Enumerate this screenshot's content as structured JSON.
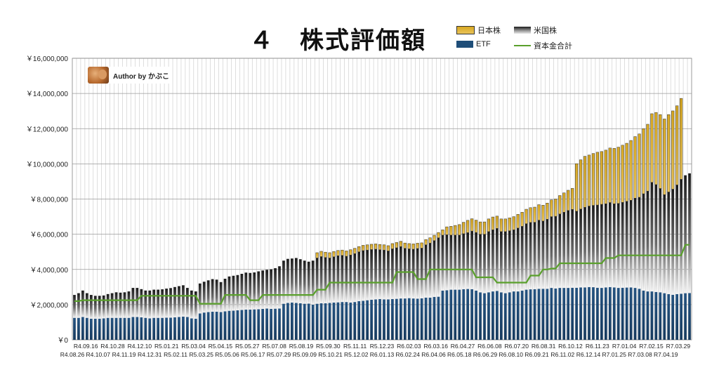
{
  "chart_data": {
    "type": "bar",
    "title": "４　株式評価額",
    "ylim": [
      0,
      16000000
    ],
    "yticks": [
      0,
      2000000,
      4000000,
      6000000,
      8000000,
      10000000,
      12000000,
      14000000,
      16000000
    ],
    "ytick_labels": [
      "￥0",
      "￥2,000,000",
      "￥4,000,000",
      "￥6,000,000",
      "￥8,000,000",
      "￥10,000,000",
      "￥12,000,000",
      "￥14,000,000",
      "￥16,000,000"
    ],
    "grid": true,
    "legend_placement": "top-right",
    "stacked": true,
    "x_label_row1": [
      "R4.09.16",
      "R4.10.28",
      "R4.12.10",
      "R5.01.21",
      "R5.03.04",
      "R5.04.15",
      "R5.05.27",
      "R5.07.08",
      "R5.08.19",
      "R5.09.30",
      "R5.11.11",
      "R5.12.23",
      "R6.02.03",
      "R6.03.16",
      "R6.04.27",
      "R6.06.08",
      "R6.07.20",
      "R6.08.31",
      "R6.10.12",
      "R6.11.23",
      "R7.01.04",
      "R7.02.15",
      "R7.03.29"
    ],
    "x_label_row2": [
      "R4.08.26",
      "R4.10.07",
      "R4.11.19",
      "R4.12.31",
      "R5.02.11",
      "R5.03.25",
      "R5.05.06",
      "R5.06.17",
      "R5.07.29",
      "R5.09.09",
      "R5.10.21",
      "R5.12.02",
      "R6.01.13",
      "R6.02.24",
      "R6.04.06",
      "R6.05.18",
      "R6.06.29",
      "R6.08.10",
      "R6.09.21",
      "R6.11.02",
      "R6.12.14",
      "R7.01.25",
      "R7.03.08",
      "R7.04.19"
    ],
    "series": [
      {
        "name": "ETF",
        "color": "#1f4e79",
        "values": [
          1250000,
          1250000,
          1300000,
          1250000,
          1200000,
          1200000,
          1200000,
          1220000,
          1250000,
          1250000,
          1250000,
          1250000,
          1250000,
          1250000,
          1300000,
          1300000,
          1280000,
          1250000,
          1220000,
          1250000,
          1250000,
          1250000,
          1260000,
          1260000,
          1280000,
          1300000,
          1320000,
          1300000,
          1220000,
          1200000,
          1500000,
          1550000,
          1580000,
          1600000,
          1600000,
          1580000,
          1620000,
          1650000,
          1660000,
          1680000,
          1700000,
          1720000,
          1720000,
          1730000,
          1740000,
          1760000,
          1780000,
          1760000,
          1770000,
          1780000,
          2050000,
          2100000,
          2120000,
          2100000,
          2080000,
          2050000,
          2060000,
          2000000,
          2050000,
          2080000,
          2080000,
          2100000,
          2120000,
          2130000,
          2150000,
          2150000,
          2120000,
          2150000,
          2200000,
          2220000,
          2250000,
          2280000,
          2300000,
          2320000,
          2300000,
          2300000,
          2320000,
          2330000,
          2350000,
          2350000,
          2370000,
          2350000,
          2340000,
          2360000,
          2400000,
          2400000,
          2440000,
          2450000,
          2800000,
          2820000,
          2850000,
          2850000,
          2850000,
          2880000,
          2890000,
          2880000,
          2800000,
          2700000,
          2650000,
          2700000,
          2750000,
          2780000,
          2700000,
          2650000,
          2700000,
          2750000,
          2750000,
          2800000,
          2850000,
          2870000,
          2880000,
          2900000,
          2900000,
          2900000,
          2950000,
          2920000,
          2950000,
          2950000,
          2950000,
          2960000,
          2960000,
          2980000,
          2980000,
          3000000,
          2990000,
          2960000,
          2950000,
          2980000,
          3000000,
          2980000,
          2950000,
          2960000,
          2970000,
          2980000,
          2950000,
          2900000,
          2800000,
          2750000,
          2750000,
          2720000,
          2700000,
          2650000,
          2600000,
          2560000,
          2600000,
          2620000,
          2650000,
          2660000
        ]
      },
      {
        "name": "米国株",
        "color": "#2a2a2a",
        "values": [
          1300000,
          1400000,
          1500000,
          1400000,
          1350000,
          1300000,
          1300000,
          1300000,
          1350000,
          1400000,
          1450000,
          1430000,
          1450000,
          1500000,
          1650000,
          1650000,
          1600000,
          1550000,
          1580000,
          1600000,
          1600000,
          1620000,
          1650000,
          1680000,
          1720000,
          1750000,
          1780000,
          1650000,
          1580000,
          1550000,
          1700000,
          1750000,
          1800000,
          1850000,
          1820000,
          1700000,
          1850000,
          1950000,
          1980000,
          2000000,
          2050000,
          2100000,
          2080000,
          2100000,
          2150000,
          2180000,
          2200000,
          2250000,
          2300000,
          2400000,
          2450000,
          2500000,
          2500000,
          2550000,
          2500000,
          2450000,
          2380000,
          2500000,
          2600000,
          2650000,
          2600000,
          2550000,
          2600000,
          2650000,
          2650000,
          2600000,
          2700000,
          2750000,
          2800000,
          2850000,
          2850000,
          2850000,
          2850000,
          2800000,
          2800000,
          2750000,
          2850000,
          2900000,
          2950000,
          2850000,
          2800000,
          2800000,
          2850000,
          2850000,
          3000000,
          3100000,
          3200000,
          3350000,
          3150000,
          3150000,
          3100000,
          3100000,
          3100000,
          3150000,
          3200000,
          3300000,
          3300000,
          3300000,
          3350000,
          3450000,
          3500000,
          3550000,
          3450000,
          3500000,
          3500000,
          3500000,
          3600000,
          3650000,
          3750000,
          3800000,
          3800000,
          3900000,
          3850000,
          3950000,
          4050000,
          4100000,
          4200000,
          4300000,
          4400000,
          4450000,
          4350000,
          4450000,
          4550000,
          4600000,
          4650000,
          4700000,
          4750000,
          4750000,
          4800000,
          4750000,
          4800000,
          4850000,
          4900000,
          4950000,
          5100000,
          5200000,
          5500000,
          5700000,
          6200000,
          6100000,
          5900000,
          5600000,
          5800000,
          6000000,
          6200000,
          6500000,
          6700000,
          6800000
        ]
      },
      {
        "name": "日本株",
        "color": "#e3b52c",
        "values": [
          0,
          0,
          0,
          0,
          0,
          0,
          0,
          0,
          0,
          0,
          0,
          0,
          0,
          0,
          0,
          0,
          0,
          0,
          0,
          0,
          0,
          0,
          0,
          0,
          0,
          0,
          0,
          0,
          0,
          0,
          0,
          0,
          0,
          0,
          0,
          0,
          0,
          0,
          0,
          0,
          0,
          0,
          0,
          0,
          0,
          0,
          0,
          0,
          0,
          0,
          0,
          0,
          0,
          0,
          0,
          0,
          0,
          0,
          300000,
          300000,
          300000,
          300000,
          300000,
          300000,
          300000,
          300000,
          300000,
          300000,
          300000,
          300000,
          300000,
          300000,
          300000,
          300000,
          300000,
          300000,
          300000,
          300000,
          300000,
          300000,
          300000,
          300000,
          300000,
          300000,
          300000,
          300000,
          300000,
          300000,
          300000,
          450000,
          500000,
          550000,
          600000,
          650000,
          700000,
          700000,
          700000,
          700000,
          700000,
          720000,
          730000,
          700000,
          720000,
          720000,
          730000,
          750000,
          780000,
          800000,
          820000,
          840000,
          860000,
          880000,
          900000,
          920000,
          950000,
          980000,
          1050000,
          1100000,
          1150000,
          1200000,
          2700000,
          2800000,
          2900000,
          2900000,
          2950000,
          3000000,
          3000000,
          3050000,
          3100000,
          3150000,
          3200000,
          3250000,
          3300000,
          3400000,
          3500000,
          3600000,
          3700000,
          3800000,
          3900000,
          4100000,
          4200000,
          4300000,
          4400000,
          4450000,
          4500000,
          4600000
        ]
      },
      {
        "name": "資本金合計",
        "color": "#5aa02c",
        "type": "line",
        "values": [
          2200000,
          2200000,
          2250000,
          2250000,
          2250000,
          2250000,
          2250000,
          2250000,
          2250000,
          2250000,
          2250000,
          2250000,
          2250000,
          2250000,
          2250000,
          2250000,
          2500000,
          2500000,
          2500000,
          2500000,
          2500000,
          2500000,
          2500000,
          2500000,
          2500000,
          2500000,
          2500000,
          2500000,
          2500000,
          2500000,
          2050000,
          2050000,
          2050000,
          2050000,
          2050000,
          2050000,
          2550000,
          2550000,
          2550000,
          2550000,
          2550000,
          2550000,
          2250000,
          2250000,
          2250000,
          2550000,
          2550000,
          2550000,
          2550000,
          2550000,
          2550000,
          2550000,
          2550000,
          2550000,
          2550000,
          2550000,
          2550000,
          2550000,
          2850000,
          2850000,
          2850000,
          3250000,
          3250000,
          3250000,
          3250000,
          3250000,
          3250000,
          3250000,
          3250000,
          3250000,
          3250000,
          3250000,
          3250000,
          3250000,
          3250000,
          3250000,
          3250000,
          3850000,
          3850000,
          3850000,
          3850000,
          3850000,
          3450000,
          3450000,
          3450000,
          4000000,
          4000000,
          4000000,
          4000000,
          4000000,
          4000000,
          4000000,
          4000000,
          4000000,
          4000000,
          4000000,
          3550000,
          3550000,
          3550000,
          3550000,
          3550000,
          3250000,
          3250000,
          3250000,
          3250000,
          3250000,
          3250000,
          3250000,
          3250000,
          3650000,
          3650000,
          3650000,
          4000000,
          4000000,
          4050000,
          4050000,
          4350000,
          4350000,
          4350000,
          4350000,
          4350000,
          4350000,
          4350000,
          4350000,
          4350000,
          4350000,
          4350000,
          4650000,
          4650000,
          4650000,
          4800000,
          4800000,
          4800000,
          4800000,
          4800000,
          4800000,
          4800000,
          4800000,
          4800000,
          4800000,
          4800000,
          4800000,
          4800000,
          4800000,
          4800000,
          4800000,
          5400000,
          5400000,
          5400000,
          5400000
        ]
      }
    ]
  },
  "legend": {
    "jp_label": "日本株",
    "us_label": "米国株",
    "etf_label": "ETF",
    "capital_label": "資本金合計"
  },
  "author_label": "Author by かぶこ"
}
